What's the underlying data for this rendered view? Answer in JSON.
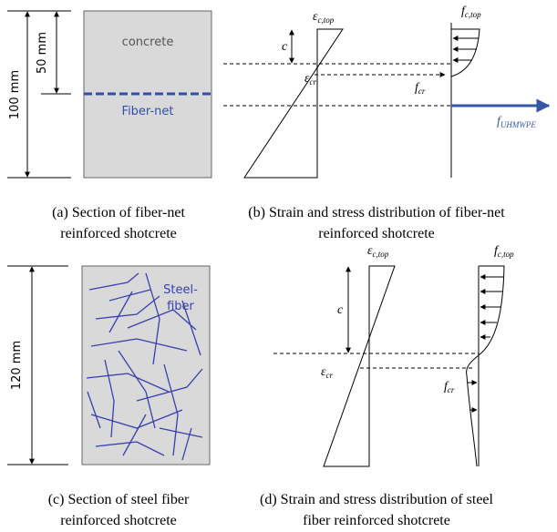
{
  "a": {
    "dim_total": "100 mm",
    "dim_part": "50 mm",
    "material": "concrete",
    "reinforcement": "Fiber-net",
    "caption": [
      "(a) Section of fiber-net",
      "reinforced shotcrete"
    ]
  },
  "b": {
    "strain_top": {
      "symbol": "ε",
      "sub": "c,top"
    },
    "depth": "c",
    "strain_cr": {
      "symbol": "ε",
      "sub": "cr"
    },
    "stress_top": {
      "symbol": "f",
      "sub": "c,top"
    },
    "stress_cr": {
      "symbol": "f",
      "sub": "cr"
    },
    "net_force": {
      "symbol": "f",
      "sub": "UHMWPE"
    },
    "caption": [
      "(b) Strain and stress distribution of fiber-net",
      "reinforced shotcrete"
    ]
  },
  "c": {
    "dim_total": "120 mm",
    "reinforcement": [
      "Steel-",
      "fiber"
    ],
    "caption": [
      "(c) Section of steel fiber",
      "reinforced shotcrete"
    ]
  },
  "d": {
    "strain_top": {
      "symbol": "ε",
      "sub": "c,top"
    },
    "depth": "c",
    "strain_cr": {
      "symbol": "ε",
      "sub": "cr"
    },
    "stress_top": {
      "symbol": "f",
      "sub": "c,top"
    },
    "stress_cr": {
      "symbol": "f",
      "sub": "cr"
    },
    "caption": [
      "(d) Strain and stress distribution of steel",
      "fiber reinforced shotcrete"
    ]
  }
}
